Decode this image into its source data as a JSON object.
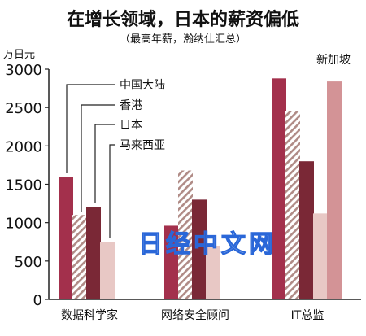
{
  "title": "在增长领域，日本的薪资偏低",
  "subtitle": "（最高年薪，瀚纳仕汇总）",
  "watermark": "日经中文网",
  "colors": {
    "china": "#a3304c",
    "hongkong_stripe": "#b08b86",
    "japan": "#7a2836",
    "malaysia": "#e8c8c5",
    "singapore": "#d39396",
    "axis": "#222222",
    "leader": "#222222"
  },
  "chart_data": {
    "type": "bar",
    "title": "在增长领域，日本的薪资偏低",
    "subtitle": "（最高年薪，瀚纳仕汇总）",
    "ylabel": "万日元",
    "ylim": [
      0,
      3000
    ],
    "yticks": [
      "0",
      "500",
      "1000",
      "1500",
      "2000",
      "2500",
      "3000"
    ],
    "categories": [
      "数据科学家",
      "网络安全顾问",
      "IT总监"
    ],
    "series": [
      {
        "name": "中国大陆",
        "key": "china",
        "pattern": "solid",
        "values": [
          1590,
          960,
          2880
        ]
      },
      {
        "name": "香港",
        "key": "hongkong_stripe",
        "pattern": "hatch",
        "values": [
          1100,
          1680,
          2450
        ]
      },
      {
        "name": "日本",
        "key": "japan",
        "pattern": "solid",
        "values": [
          1200,
          1300,
          1800
        ]
      },
      {
        "name": "马来西亚",
        "key": "malaysia",
        "pattern": "solid",
        "values": [
          750,
          700,
          1120
        ]
      },
      {
        "name": "新加坡",
        "key": "singapore",
        "pattern": "solid",
        "values": [
          null,
          null,
          2840
        ]
      }
    ],
    "legend_placement": "callout labels inside plot",
    "grid": false
  }
}
